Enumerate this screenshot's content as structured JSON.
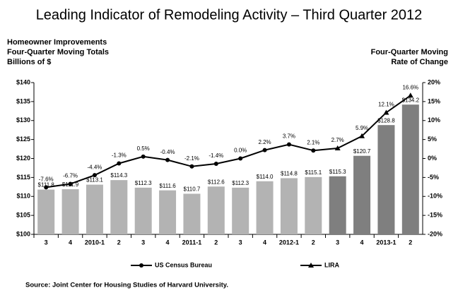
{
  "chart_data": {
    "type": "bar-line",
    "title": "Leading Indicator of Remodeling Activity – Third Quarter 2012",
    "ylabel": [
      "Homeowner Improvements",
      "Four-Quarter Moving Totals",
      "Billions of $"
    ],
    "y2label": [
      "Four-Quarter Moving",
      "Rate of Change"
    ],
    "source": "Source: Joint Center for Housing Studies of Harvard University.",
    "categories": [
      "3",
      "4",
      "2010-1",
      "2",
      "3",
      "4",
      "2011-1",
      "2",
      "3",
      "4",
      "2012-1",
      "2",
      "3",
      "4",
      "2013-1",
      "2"
    ],
    "ylim": [
      100,
      140
    ],
    "yticks": [
      {
        "value": 100,
        "label": "$100"
      },
      {
        "value": 105,
        "label": "$105"
      },
      {
        "value": 110,
        "label": "$110"
      },
      {
        "value": 115,
        "label": "$115"
      },
      {
        "value": 120,
        "label": "$120"
      },
      {
        "value": 125,
        "label": "$125"
      },
      {
        "value": 130,
        "label": "$130"
      },
      {
        "value": 135,
        "label": "$135"
      },
      {
        "value": 140,
        "label": "$140"
      }
    ],
    "y2lim": [
      -20,
      20
    ],
    "y2ticks": [
      {
        "value": -20,
        "label": "-20%"
      },
      {
        "value": -15,
        "label": "-15%"
      },
      {
        "value": -10,
        "label": "-10%"
      },
      {
        "value": -5,
        "label": "-5%"
      },
      {
        "value": 0,
        "label": "0%"
      },
      {
        "value": 5,
        "label": "5%"
      },
      {
        "value": 10,
        "label": "10%"
      },
      {
        "value": 15,
        "label": "15%"
      },
      {
        "value": 20,
        "label": "20%"
      }
    ],
    "series": [
      {
        "type": "bar",
        "colors": [
          "#b3b3b3",
          "#b3b3b3",
          "#b3b3b3",
          "#b3b3b3",
          "#b3b3b3",
          "#b3b3b3",
          "#b3b3b3",
          "#b3b3b3",
          "#b3b3b3",
          "#b3b3b3",
          "#b3b3b3",
          "#b3b3b3",
          "#7f7f7f",
          "#7f7f7f",
          "#7f7f7f",
          "#7f7f7f"
        ],
        "values": [
          111.8,
          111.9,
          113.1,
          114.3,
          112.3,
          111.6,
          110.7,
          112.6,
          112.3,
          114.0,
          114.8,
          115.1,
          115.3,
          120.7,
          128.8,
          134.2
        ],
        "value_labels": [
          "$111.8",
          "$111.9",
          "$113.1",
          "$114.3",
          "$112.3",
          "$111.6",
          "$110.7",
          "$112.6",
          "$112.3",
          "$114.0",
          "$114.8",
          "$115.1",
          "$115.3",
          "$120.7",
          "$128.8",
          "$134.2"
        ]
      },
      {
        "type": "line",
        "name": "US Census Bureau",
        "axis": "y2",
        "color": "#000000",
        "marker": "circle",
        "values": [
          -7.6,
          -6.7,
          -4.4,
          -1.3,
          0.5,
          -0.4,
          -2.1,
          -1.4,
          0.0,
          2.2,
          3.7,
          2.1,
          null,
          null,
          null,
          null
        ],
        "value_labels": [
          "-7.6%",
          "-6.7%",
          "-4.4%",
          "-1.3%",
          "0.5%",
          "-0.4%",
          "-2.1%",
          "-1.4%",
          "0.0%",
          "2.2%",
          "3.7%",
          "2.1%",
          null,
          null,
          null,
          null
        ]
      },
      {
        "type": "line",
        "name": "LIRA",
        "axis": "y2",
        "color": "#000000",
        "marker": "triangle",
        "values": [
          null,
          null,
          null,
          null,
          null,
          null,
          null,
          null,
          null,
          null,
          null,
          null,
          2.7,
          5.9,
          12.1,
          16.6
        ],
        "value_labels": [
          null,
          null,
          null,
          null,
          null,
          null,
          null,
          null,
          null,
          null,
          null,
          null,
          "2.7%",
          "5.9%",
          "12.1%",
          "16.6%"
        ]
      }
    ]
  }
}
